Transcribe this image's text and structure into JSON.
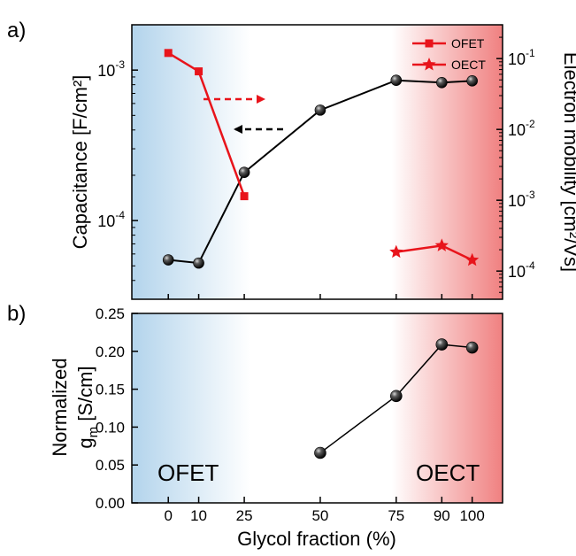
{
  "colors": {
    "ofet_blue": "#b3d4ec",
    "oect_red": "#f08080",
    "capacitance_series": "#000000",
    "ofet_series": "#e8141b",
    "oect_series": "#e8141b",
    "arrow_red": "#e8141b",
    "arrow_black": "#000000"
  },
  "chart_data": [
    {
      "type": "line",
      "panel_label": "a)",
      "ylabel_left": "Capacitance [F/cm²]",
      "ylabel_right": "Electron mobility [cm²/Vs]",
      "y_left_scale": "log",
      "y_left_lim": [
        3e-05,
        0.002
      ],
      "y_left_ticks": [
        {
          "value": 0.0001,
          "base": "10",
          "exp": "-4"
        },
        {
          "value": 0.001,
          "base": "10",
          "exp": "-3"
        }
      ],
      "y_right_scale": "log",
      "y_right_lim": [
        4e-05,
        0.3
      ],
      "y_right_ticks": [
        {
          "value": 0.0001,
          "base": "10",
          "exp": "-4"
        },
        {
          "value": 0.001,
          "base": "10",
          "exp": "-3"
        },
        {
          "value": 0.01,
          "base": "10",
          "exp": "-2"
        },
        {
          "value": 0.1,
          "base": "10",
          "exp": "-1"
        }
      ],
      "xlim": [
        -12,
        110
      ],
      "x_tick_positions": [
        0,
        10,
        25,
        50,
        75,
        90,
        100
      ],
      "legend_position": "top-right",
      "background": "gradient blue (left) to white to red (right)",
      "series": [
        {
          "axis": "left",
          "marker": "sphere",
          "color": "#000000",
          "x": [
            0,
            10,
            25,
            50,
            75,
            90,
            100
          ],
          "y": [
            5.48e-05,
            5.22e-05,
            0.000209,
            0.000542,
            0.000855,
            0.000826,
            0.000848
          ]
        },
        {
          "name": "OFET",
          "axis": "right",
          "marker": "square",
          "color": "#e8141b",
          "x": [
            0,
            10,
            25
          ],
          "y": [
            0.12,
            0.066,
            0.00114
          ]
        },
        {
          "name": "OECT",
          "axis": "right",
          "marker": "star",
          "color": "#e8141b",
          "x": [
            75,
            90,
            100
          ],
          "y": [
            0.000186,
            0.000229,
            0.000143
          ]
        }
      ],
      "annotations": [
        {
          "type": "arrow",
          "color": "#e8141b",
          "style": "dashed",
          "direction": "right",
          "points_to": "right axis"
        },
        {
          "type": "arrow",
          "color": "#000000",
          "style": "dashed",
          "direction": "left",
          "points_to": "left axis"
        }
      ]
    },
    {
      "type": "line",
      "panel_label": "b)",
      "ylabel_line1": "Normalized",
      "ylabel_g": "g",
      "ylabel_sub": "m",
      "ylabel_unit": " [S/cm]",
      "xlabel": "Glycol fraction (%)",
      "xlim": [
        -12,
        110
      ],
      "ylim": [
        0,
        0.25
      ],
      "y_ticks": [
        0,
        0.05,
        0.1,
        0.15,
        0.2,
        0.25
      ],
      "y_tick_labels": [
        "0.00",
        "0.05",
        "0.10",
        "0.15",
        "0.20",
        "0.25"
      ],
      "x_ticks": [
        0,
        10,
        25,
        50,
        75,
        90,
        100
      ],
      "x_tick_labels": [
        "0",
        "10",
        "25",
        "50",
        "75",
        "90",
        "100"
      ],
      "region_labels": {
        "left": "OFET",
        "right": "OECT"
      },
      "background": "gradient blue (left) to white to red (right)",
      "series": [
        {
          "marker": "sphere",
          "color": "#000000",
          "x": [
            50,
            75,
            90,
            100
          ],
          "y": [
            0.066,
            0.141,
            0.209,
            0.205
          ]
        }
      ]
    }
  ]
}
